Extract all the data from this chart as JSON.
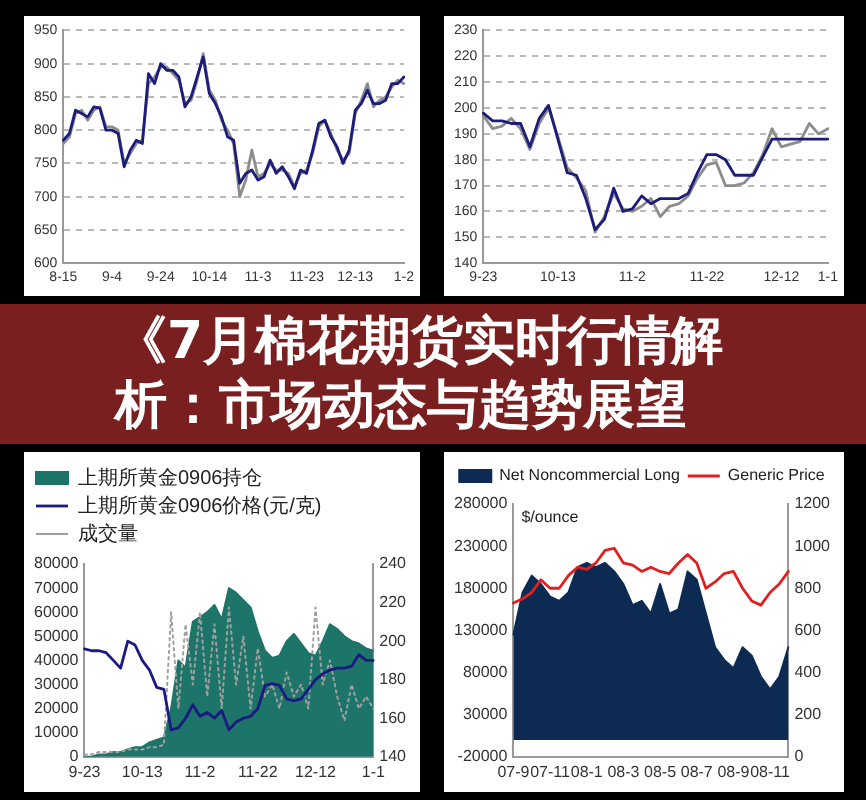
{
  "chart_data": [
    {
      "type": "line",
      "categories": [
        "8-15",
        null,
        null,
        null,
        null,
        null,
        null,
        null,
        "9-4",
        null,
        null,
        null,
        null,
        null,
        null,
        null,
        "9-24",
        null,
        null,
        null,
        null,
        null,
        null,
        null,
        "10-14",
        null,
        null,
        null,
        null,
        null,
        null,
        null,
        "11-3",
        null,
        null,
        null,
        null,
        null,
        null,
        null,
        "11-23",
        null,
        null,
        null,
        null,
        null,
        null,
        null,
        "12-13",
        null,
        null,
        null,
        null,
        null,
        null,
        null,
        "1-2"
      ],
      "series": [
        {
          "color": "#1c1c7a",
          "values": [
            785,
            795,
            830,
            825,
            820,
            835,
            833,
            800,
            800,
            795,
            745,
            770,
            785,
            780,
            885,
            870,
            900,
            890,
            890,
            880,
            835,
            850,
            880,
            910,
            855,
            840,
            820,
            790,
            785,
            720,
            735,
            740,
            725,
            730,
            755,
            735,
            745,
            730,
            712,
            740,
            735,
            770,
            810,
            815,
            790,
            775,
            750,
            770,
            830,
            840,
            860,
            840,
            840,
            845,
            870,
            870,
            880
          ]
        },
        {
          "color": "#8c8c8c",
          "values": [
            780,
            790,
            825,
            830,
            815,
            830,
            835,
            805,
            805,
            800,
            750,
            765,
            780,
            785,
            870,
            880,
            895,
            895,
            885,
            875,
            840,
            845,
            875,
            915,
            860,
            845,
            815,
            800,
            780,
            700,
            725,
            770,
            730,
            735,
            750,
            740,
            740,
            735,
            715,
            735,
            740,
            765,
            805,
            815,
            795,
            770,
            755,
            765,
            825,
            845,
            870,
            835,
            845,
            850,
            865,
            875,
            870
          ]
        }
      ],
      "ylim": [
        600,
        950
      ],
      "yticks": [
        600,
        650,
        700,
        750,
        800,
        850,
        900,
        950
      ],
      "grid": "y"
    },
    {
      "type": "line",
      "categories": [
        "9-23",
        null,
        null,
        null,
        null,
        null,
        null,
        null,
        "10-13",
        null,
        null,
        null,
        null,
        null,
        null,
        null,
        "11-2",
        null,
        null,
        null,
        null,
        null,
        null,
        null,
        "11-22",
        null,
        null,
        null,
        null,
        null,
        null,
        null,
        "12-12",
        null,
        null,
        null,
        null,
        "1-1"
      ],
      "series": [
        {
          "color": "#1c1c7a",
          "values": [
            198,
            195,
            195,
            194,
            194,
            185,
            196,
            201,
            188,
            175,
            174,
            165,
            153,
            157,
            169,
            160,
            161,
            166,
            163,
            165,
            165,
            165,
            167,
            175,
            182,
            182,
            180,
            174,
            174,
            174,
            181,
            188,
            188,
            188,
            188,
            188,
            188,
            188
          ]
        },
        {
          "color": "#8c8c8c",
          "values": [
            197,
            192,
            193,
            196,
            192,
            184,
            194,
            200,
            189,
            177,
            173,
            168,
            152,
            158,
            167,
            161,
            160,
            162,
            165,
            158,
            162,
            163,
            166,
            173,
            178,
            179,
            170,
            170,
            171,
            175,
            182,
            192,
            185,
            186,
            187,
            194,
            190,
            192
          ]
        }
      ],
      "ylim": [
        140,
        230
      ],
      "yticks": [
        140,
        150,
        160,
        170,
        180,
        190,
        200,
        210,
        220,
        230
      ],
      "grid": "y"
    },
    {
      "type": "other",
      "title": "《7月棉花期货实时行情解析：市场动态与趋势展望"
    },
    {
      "type": "area",
      "categories": [
        "9-23",
        null,
        null,
        null,
        null,
        null,
        null,
        null,
        "10-13",
        null,
        null,
        null,
        null,
        null,
        null,
        null,
        "11-2",
        null,
        null,
        null,
        null,
        null,
        null,
        null,
        "11-22",
        null,
        null,
        null,
        null,
        null,
        null,
        null,
        "12-12",
        null,
        null,
        null,
        null,
        null,
        null,
        null,
        "1-1"
      ],
      "series": [
        {
          "name": "上期所黄金0906持仓",
          "type": "area",
          "color": "#1d7468",
          "values": [
            0,
            0,
            1000,
            1000,
            2000,
            2000,
            3000,
            4000,
            4000,
            6000,
            7000,
            8000,
            20000,
            40000,
            37000,
            56000,
            58000,
            60000,
            63000,
            57000,
            70000,
            68000,
            65000,
            62000,
            52000,
            44000,
            41000,
            42000,
            48000,
            51000,
            47000,
            43000,
            42000,
            48000,
            55000,
            53000,
            50000,
            48000,
            47000,
            45000,
            44000
          ]
        },
        {
          "name": "上期所黄金0906价格(元/克)",
          "type": "line",
          "axis": "y2",
          "color": "#1a1a80",
          "values": [
            196,
            195,
            195,
            194,
            190,
            186,
            200,
            198,
            190,
            185,
            176,
            175,
            154,
            155,
            160,
            167,
            161,
            163,
            160,
            164,
            154,
            158,
            160,
            161,
            165,
            177,
            178,
            177,
            170,
            169,
            170,
            175,
            180,
            183,
            185,
            186,
            186,
            187,
            193,
            190,
            190
          ]
        },
        {
          "name": "成交量",
          "type": "line",
          "line_style": "dotted",
          "color": "#a0a0a0",
          "values": [
            1000,
            1000,
            2000,
            2000,
            2000,
            2000,
            3000,
            3000,
            3000,
            4000,
            4000,
            5000,
            60000,
            20000,
            55000,
            30000,
            60000,
            25000,
            55000,
            20000,
            62000,
            30000,
            50000,
            20000,
            45000,
            25000,
            30000,
            20000,
            35000,
            25000,
            30000,
            20000,
            62000,
            30000,
            40000,
            25000,
            15000,
            30000,
            20000,
            25000,
            20000
          ]
        }
      ],
      "ylim": [
        0,
        80000
      ],
      "yticks": [
        0,
        10000,
        20000,
        30000,
        40000,
        50000,
        60000,
        70000,
        80000
      ],
      "y2lim": [
        140,
        240
      ],
      "y2ticks": [
        140,
        160,
        180,
        200,
        220,
        240
      ],
      "legend": "top left"
    },
    {
      "type": "area",
      "categories": [
        "07-9",
        null,
        null,
        null,
        "07-11",
        null,
        null,
        null,
        "08-1",
        null,
        null,
        null,
        "08-3",
        null,
        null,
        null,
        "08-5",
        null,
        null,
        null,
        "08-7",
        null,
        null,
        null,
        "08-9",
        null,
        null,
        null,
        "08-11",
        null,
        null
      ],
      "series": [
        {
          "name": "Net Noncommercial Long",
          "type": "area",
          "color": "#0d2b52",
          "values": [
            125000,
            175000,
            195000,
            185000,
            170000,
            165000,
            175000,
            205000,
            210000,
            205000,
            210000,
            200000,
            185000,
            160000,
            165000,
            150000,
            185000,
            150000,
            155000,
            200000,
            190000,
            150000,
            110000,
            95000,
            85000,
            110000,
            100000,
            75000,
            60000,
            75000,
            110000
          ]
        },
        {
          "name": "Generic Price",
          "type": "line",
          "axis": "y2",
          "color": "#e02020",
          "values": [
            730,
            750,
            780,
            840,
            800,
            800,
            860,
            900,
            890,
            920,
            980,
            990,
            920,
            910,
            880,
            900,
            880,
            870,
            920,
            960,
            920,
            800,
            830,
            870,
            880,
            800,
            740,
            720,
            780,
            820,
            880
          ]
        }
      ],
      "ylim": [
        -20000,
        280000
      ],
      "yticks": [
        -20000,
        30000,
        80000,
        130000,
        180000,
        230000,
        280000
      ],
      "y2lim": [
        0,
        1200
      ],
      "y2ticks": [
        0,
        200,
        400,
        600,
        800,
        1000,
        1200
      ],
      "legend": "top",
      "annotations": [
        "$/ounce"
      ]
    }
  ]
}
